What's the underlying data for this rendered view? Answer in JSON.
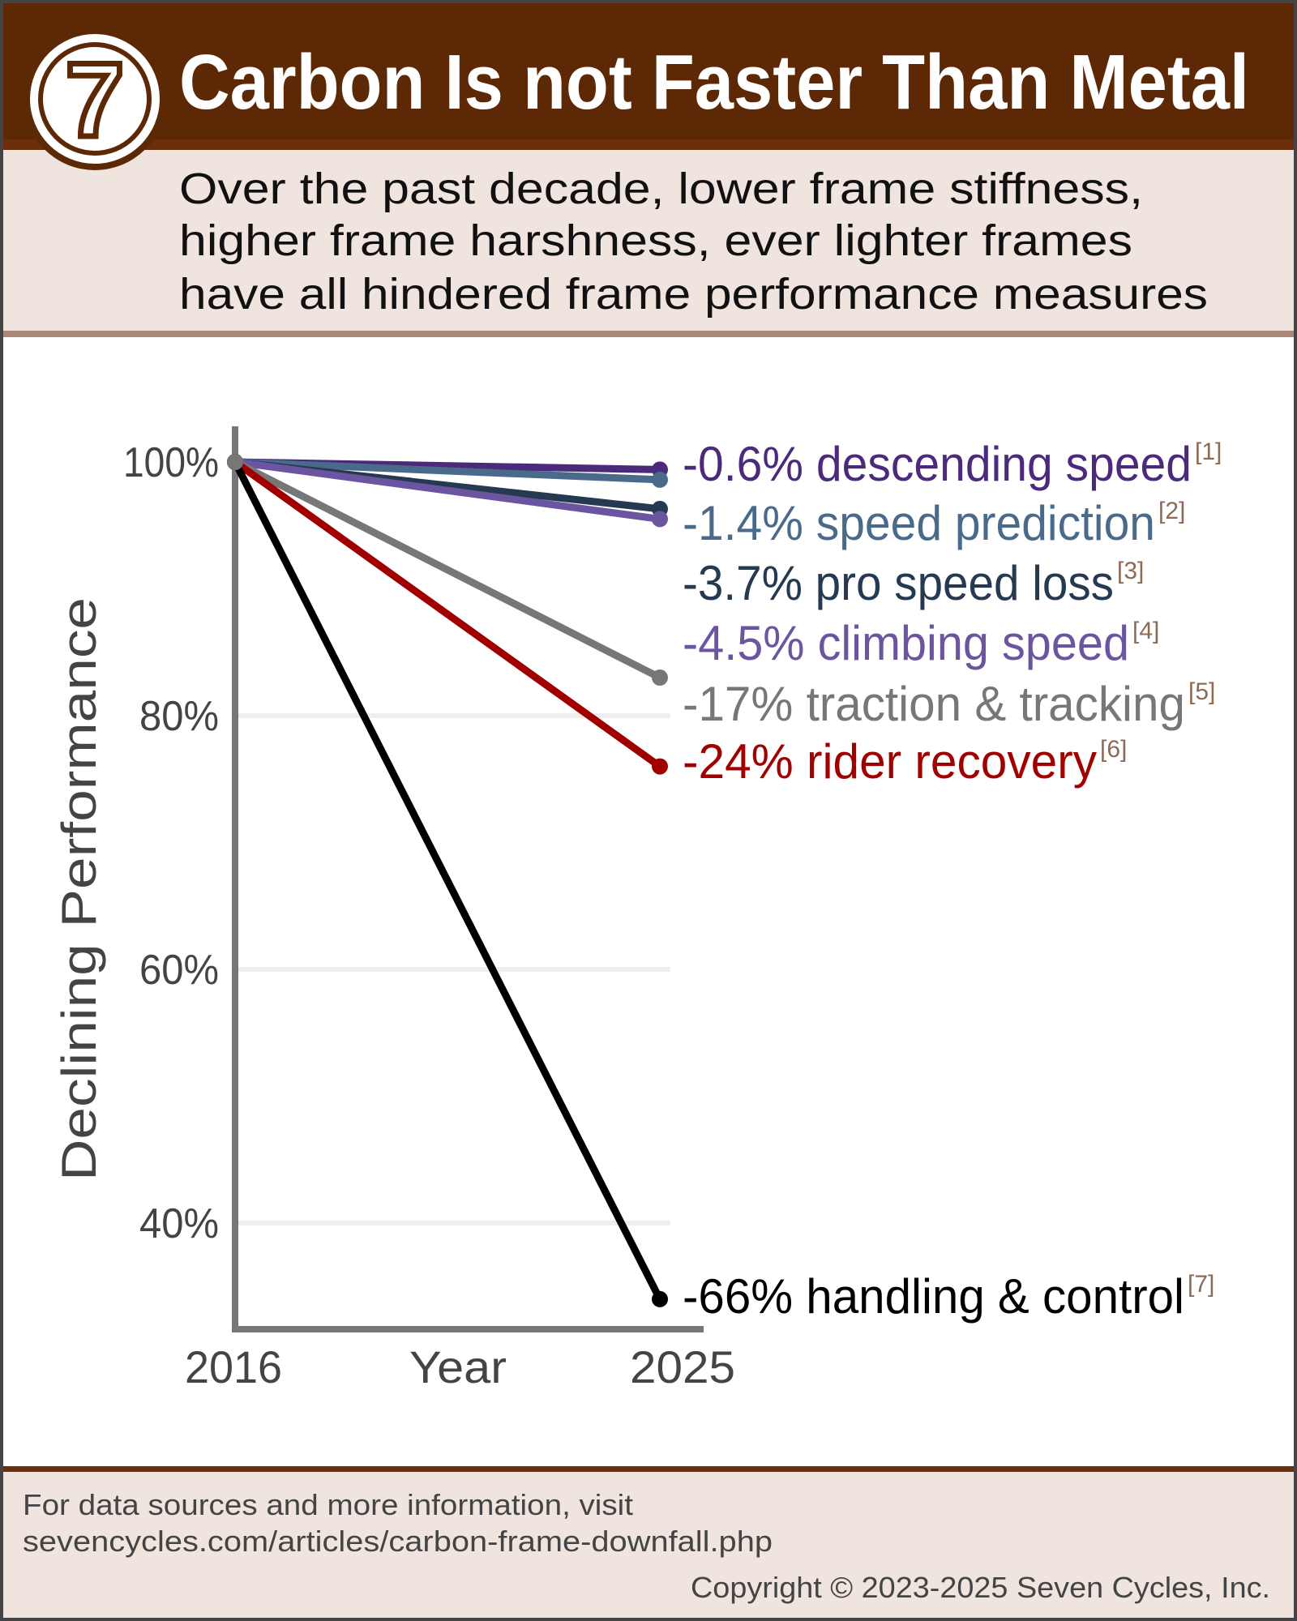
{
  "header": {
    "title": "Carbon Is not Faster Than Metal",
    "logo_glyph": "7",
    "subtitle_lines": [
      "Over the past decade, lower frame stiffness,",
      "higher frame harshness, ever lighter frames",
      "have all hindered frame performance measures"
    ]
  },
  "colors": {
    "header_bg": "#5c2806",
    "panel_bg": "#efe5de",
    "divider": "#a88a76",
    "axis": "#777777",
    "reference": "#8c6a55"
  },
  "chart_data": {
    "type": "line",
    "title": "",
    "xlabel": "Year",
    "ylabel": "Declining Performance",
    "x_ticks": [
      "2016",
      "2025"
    ],
    "y_ticks": [
      "100%",
      "80%",
      "60%",
      "40%"
    ],
    "y_tick_values": [
      100,
      80,
      60,
      40
    ],
    "ylim": [
      34,
      100
    ],
    "grid": true,
    "series": [
      {
        "name": "descending speed",
        "change": "-0.6%",
        "ref": "[1]",
        "color": "#4b2a7b",
        "values": [
          100,
          99.4
        ]
      },
      {
        "name": "speed prediction",
        "change": "-1.4%",
        "ref": "[2]",
        "color": "#4a6a8c",
        "values": [
          100,
          98.6
        ]
      },
      {
        "name": "pro speed loss",
        "change": "-3.7%",
        "ref": "[3]",
        "color": "#253a50",
        "values": [
          100,
          96.3
        ]
      },
      {
        "name": "climbing speed",
        "change": "-4.5%",
        "ref": "[4]",
        "color": "#6b55a0",
        "values": [
          100,
          95.5
        ]
      },
      {
        "name": "traction & tracking",
        "change": "-17%",
        "ref": "[5]",
        "color": "#777777",
        "values": [
          100,
          83
        ]
      },
      {
        "name": "rider recovery",
        "change": "-24%",
        "ref": "[6]",
        "color": "#a00000",
        "values": [
          100,
          76
        ]
      },
      {
        "name": "handling & control",
        "change": "-66%",
        "ref": "[7]",
        "color": "#000000",
        "values": [
          100,
          34
        ]
      }
    ]
  },
  "footer": {
    "line1": "For data sources and more information, visit",
    "line2": "sevencycles.com/articles/carbon-frame-downfall.php",
    "copyright": "Copyright © 2023-2025 Seven Cycles, Inc."
  }
}
